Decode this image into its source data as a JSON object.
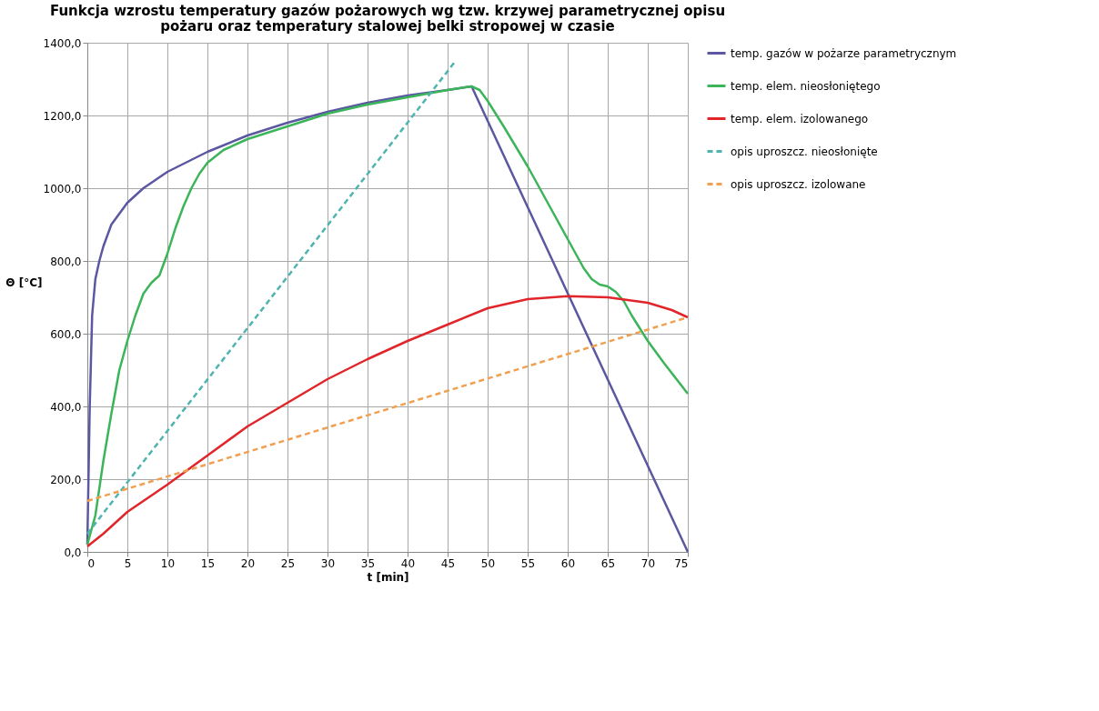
{
  "chart_data": {
    "type": "line",
    "title": [
      "Funkcja wzrostu temperatury gazów pożarowych wg tzw. krzywej parametrycznej opisu",
      "pożaru oraz temperatury stalowej belki stropowej w czasie"
    ],
    "xlabel": "t [min]",
    "ylabel": "Θ [°C]",
    "xlim": [
      0,
      75
    ],
    "xticks": [
      0,
      5,
      10,
      15,
      20,
      25,
      30,
      35,
      40,
      45,
      50,
      55,
      60,
      65,
      70,
      75
    ],
    "ylim": [
      0,
      1400
    ],
    "yticks": [
      {
        "value": 0,
        "label": "0,0"
      },
      {
        "value": 200,
        "label": "200,0"
      },
      {
        "value": 400,
        "label": "400,0"
      },
      {
        "value": 600,
        "label": "600,0"
      },
      {
        "value": 800,
        "label": "800,0"
      },
      {
        "value": 1000,
        "label": "1000,0"
      },
      {
        "value": 1200,
        "label": "1200,0"
      },
      {
        "value": 1400,
        "label": "1400,0"
      }
    ],
    "grid": true,
    "legend": "right",
    "marker": "none",
    "series": [
      {
        "name": "temp. gazów w pożarze parametrycznym",
        "color": "#5b57a0",
        "line_style": "solid",
        "x": [
          0,
          0.3,
          0.6,
          1,
          1.5,
          2,
          3,
          5,
          7,
          10,
          15,
          20,
          25,
          30,
          35,
          40,
          45,
          48,
          75
        ],
        "values": [
          20,
          400,
          650,
          750,
          800,
          840,
          900,
          960,
          1000,
          1045,
          1100,
          1145,
          1180,
          1210,
          1235,
          1255,
          1270,
          1280,
          0
        ]
      },
      {
        "name": "temp. elem. nieosłoniętego",
        "color": "#3cb45a",
        "line_style": "solid",
        "x": [
          0,
          1,
          2,
          3,
          4,
          5,
          6,
          7,
          8,
          9,
          10,
          11,
          12,
          13,
          14,
          15,
          17,
          20,
          25,
          30,
          35,
          40,
          45,
          48,
          49,
          50,
          52,
          55,
          58,
          60,
          62,
          63,
          64,
          65,
          66,
          67,
          68,
          70,
          72,
          75
        ],
        "values": [
          20,
          100,
          250,
          380,
          500,
          580,
          650,
          710,
          740,
          760,
          820,
          890,
          950,
          1000,
          1040,
          1070,
          1105,
          1135,
          1170,
          1205,
          1230,
          1250,
          1270,
          1280,
          1270,
          1240,
          1170,
          1060,
          940,
          860,
          780,
          750,
          735,
          730,
          715,
          690,
          650,
          580,
          520,
          435
        ]
      },
      {
        "name": "temp. elem. izolowanego",
        "color": "#e0262a",
        "line_style": "solid",
        "x": [
          0,
          2,
          5,
          10,
          15,
          20,
          25,
          30,
          35,
          40,
          45,
          50,
          55,
          60,
          65,
          70,
          73,
          75
        ],
        "values": [
          15,
          50,
          110,
          185,
          265,
          345,
          410,
          475,
          530,
          580,
          625,
          670,
          695,
          703,
          700,
          685,
          665,
          645
        ]
      },
      {
        "name": "opis uproszcz. nieosłonięte",
        "color": "#4fb3b0",
        "line_style": "dashed",
        "x": [
          0,
          46
        ],
        "values": [
          50,
          1350
        ]
      },
      {
        "name": "opis uproszcz. izolowane",
        "color": "#f0a050",
        "line_style": "dashed",
        "x": [
          0,
          75
        ],
        "values": [
          140,
          645
        ]
      }
    ]
  }
}
